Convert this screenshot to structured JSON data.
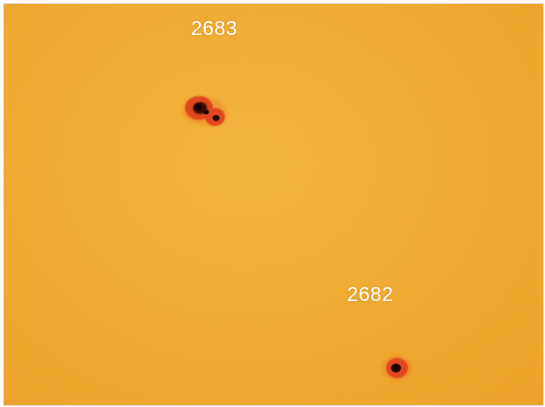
{
  "image": {
    "colors": {
      "photosphere": "#f2a92e",
      "penumbra": "#e0461b",
      "umbra": "#1a0500",
      "label": "#ffffff"
    }
  },
  "regions": [
    {
      "label": "2683"
    },
    {
      "label": "2682"
    }
  ]
}
